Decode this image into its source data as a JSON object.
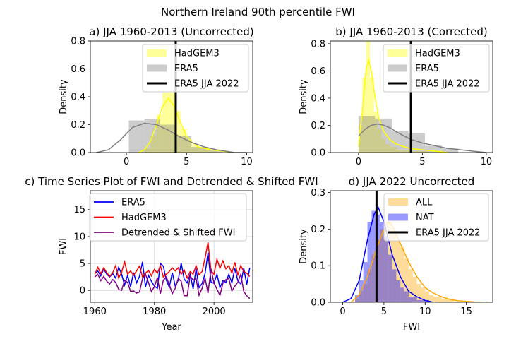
{
  "figure": {
    "suptitle": "Northern Ireland 90th percentile FWI"
  },
  "colors": {
    "hadgem_fill": "#ffff00",
    "hadgem_line": "#ffff00",
    "era5_fill": "#808080",
    "era5_line": "#808080",
    "obs_line": "#000000",
    "ts_era5": "#0000ff",
    "ts_hadgem": "#ff0000",
    "ts_detrended": "#800080",
    "all_fill": "#ffa500",
    "all_line": "#ffa500",
    "nat_fill": "#0000ff",
    "nat_line": "#0000ff",
    "grid": "#b0b0b0"
  },
  "chart_data": [
    {
      "id": "a",
      "type": "bar",
      "title": "a) JJA 1960-2013 (Uncorrected)",
      "xlabel": "",
      "ylabel": "Density",
      "xlim": [
        -3,
        10.5
      ],
      "ylim": [
        0,
        0.8
      ],
      "xticks": [
        0,
        5,
        10
      ],
      "yticks": [
        0.0,
        0.2,
        0.4,
        0.6,
        0.8
      ],
      "legend_position": "upper right",
      "legend": [
        "HadGEM3",
        "ERA5",
        "ERA5 JJA 2022"
      ],
      "hist_series": [
        {
          "name": "HadGEM3",
          "bins": [
            [
              1.5,
              2.0,
              0.03
            ],
            [
              2.0,
              2.5,
              0.12
            ],
            [
              2.5,
              3.0,
              0.27
            ],
            [
              3.0,
              3.5,
              0.43
            ],
            [
              3.5,
              4.0,
              0.43
            ],
            [
              4.0,
              4.5,
              0.3
            ],
            [
              4.5,
              5.0,
              0.17
            ],
            [
              5.0,
              5.5,
              0.09
            ],
            [
              5.5,
              6.0,
              0.05
            ],
            [
              6.0,
              6.5,
              0.03
            ],
            [
              6.5,
              7.0,
              0.02
            ],
            [
              7.0,
              7.5,
              0.01
            ]
          ],
          "kde": [
            [
              1.0,
              0.0
            ],
            [
              1.5,
              0.02
            ],
            [
              2.0,
              0.08
            ],
            [
              2.5,
              0.2
            ],
            [
              3.0,
              0.33
            ],
            [
              3.5,
              0.39
            ],
            [
              4.0,
              0.33
            ],
            [
              4.5,
              0.21
            ],
            [
              5.0,
              0.12
            ],
            [
              5.5,
              0.07
            ],
            [
              6.0,
              0.04
            ],
            [
              7.0,
              0.02
            ],
            [
              8.0,
              0.01
            ],
            [
              9.0,
              0.0
            ]
          ]
        },
        {
          "name": "ERA5",
          "bins": [
            [
              0.2,
              1.5,
              0.23
            ],
            [
              1.5,
              2.8,
              0.24
            ],
            [
              2.8,
              4.1,
              0.2
            ],
            [
              4.1,
              5.4,
              0.12
            ],
            [
              5.4,
              6.7,
              0.04
            ],
            [
              6.7,
              8.0,
              0.02
            ]
          ],
          "kde": [
            [
              -2.5,
              0.0
            ],
            [
              -1.5,
              0.02
            ],
            [
              -0.5,
              0.09
            ],
            [
              0.5,
              0.18
            ],
            [
              1.5,
              0.21
            ],
            [
              2.5,
              0.2
            ],
            [
              3.5,
              0.16
            ],
            [
              4.5,
              0.11
            ],
            [
              5.5,
              0.07
            ],
            [
              6.5,
              0.04
            ],
            [
              7.5,
              0.02
            ],
            [
              9.0,
              0.0
            ],
            [
              10.0,
              0.0
            ]
          ]
        }
      ],
      "vline": {
        "name": "ERA5 JJA 2022",
        "x": 4.1
      }
    },
    {
      "id": "b",
      "type": "bar",
      "title": "b) JJA 1960-2013 (Corrected)",
      "xlabel": "",
      "ylabel": "Density",
      "xlim": [
        -2.2,
        10.5
      ],
      "ylim": [
        0,
        0.82
      ],
      "xticks": [
        0,
        5,
        10
      ],
      "yticks": [
        0.0,
        0.2,
        0.4,
        0.6,
        0.8
      ],
      "legend_position": "upper right",
      "legend": [
        "HadGEM3",
        "ERA5",
        "ERA5 JJA 2022"
      ],
      "hist_series": [
        {
          "name": "HadGEM3",
          "bins": [
            [
              0.0,
              0.3,
              0.2
            ],
            [
              0.3,
              0.6,
              0.55
            ],
            [
              0.6,
              0.9,
              0.82
            ],
            [
              0.9,
              1.2,
              0.55
            ],
            [
              1.2,
              1.5,
              0.3
            ],
            [
              1.5,
              1.8,
              0.17
            ],
            [
              1.8,
              2.1,
              0.1
            ],
            [
              2.1,
              2.5,
              0.06
            ],
            [
              2.5,
              3.0,
              0.04
            ],
            [
              3.0,
              4.0,
              0.02
            ],
            [
              4.0,
              5.5,
              0.01
            ]
          ],
          "kde": [
            [
              0.0,
              0.05
            ],
            [
              0.3,
              0.3
            ],
            [
              0.6,
              0.62
            ],
            [
              0.8,
              0.68
            ],
            [
              1.0,
              0.6
            ],
            [
              1.3,
              0.4
            ],
            [
              1.6,
              0.25
            ],
            [
              2.0,
              0.15
            ],
            [
              2.5,
              0.09
            ],
            [
              3.0,
              0.06
            ],
            [
              4.0,
              0.03
            ],
            [
              5.0,
              0.02
            ],
            [
              6.0,
              0.01
            ],
            [
              7.0,
              0.0
            ]
          ]
        },
        {
          "name": "ERA5",
          "bins": [
            [
              0.0,
              1.3,
              0.27
            ],
            [
              1.3,
              2.6,
              0.25
            ],
            [
              2.6,
              3.9,
              0.16
            ],
            [
              3.9,
              5.2,
              0.14
            ],
            [
              5.2,
              6.5,
              0.05
            ],
            [
              6.5,
              7.8,
              0.03
            ]
          ],
          "kde": [
            [
              0.0,
              0.12
            ],
            [
              0.5,
              0.17
            ],
            [
              1.0,
              0.2
            ],
            [
              1.5,
              0.21
            ],
            [
              2.0,
              0.2
            ],
            [
              2.5,
              0.18
            ],
            [
              3.0,
              0.15
            ],
            [
              4.0,
              0.1
            ],
            [
              5.0,
              0.07
            ],
            [
              6.0,
              0.05
            ],
            [
              7.0,
              0.03
            ],
            [
              8.0,
              0.02
            ],
            [
              9.0,
              0.01
            ],
            [
              10.0,
              0.0
            ]
          ]
        }
      ],
      "vline": {
        "name": "ERA5 JJA 2022",
        "x": 4.1
      }
    },
    {
      "id": "c",
      "type": "line",
      "title": "c) Time Series Plot of FWI and Detrended & Shifted FWI",
      "xlabel": "Year",
      "ylabel": "FWI",
      "xlim": [
        1958.5,
        2013
      ],
      "ylim": [
        -2.2,
        18.5
      ],
      "xticks": [
        1960,
        1980,
        2000
      ],
      "yticks": [
        0,
        5,
        10,
        15
      ],
      "grid": true,
      "legend_position": "upper left",
      "x": [
        1960,
        1961,
        1962,
        1963,
        1964,
        1965,
        1966,
        1967,
        1968,
        1969,
        1970,
        1971,
        1972,
        1973,
        1974,
        1975,
        1976,
        1977,
        1978,
        1979,
        1980,
        1981,
        1982,
        1983,
        1984,
        1985,
        1986,
        1987,
        1988,
        1989,
        1990,
        1991,
        1992,
        1993,
        1994,
        1995,
        1996,
        1997,
        1998,
        1999,
        2000,
        2001,
        2002,
        2003,
        2004,
        2005,
        2006,
        2007,
        2008,
        2009,
        2010,
        2011,
        2012
      ],
      "series": [
        {
          "name": "ERA5",
          "values": [
            3.2,
            3.6,
            2.7,
            4.0,
            3.0,
            2.5,
            3.1,
            2.3,
            4.3,
            3.0,
            1.0,
            2.8,
            0.7,
            3.3,
            1.4,
            2.6,
            5.3,
            0.6,
            2.8,
            1.7,
            0.8,
            0.4,
            5.0,
            4.5,
            1.9,
            0.6,
            3.3,
            0.8,
            1.9,
            5.1,
            2.1,
            1.4,
            3.0,
            0.3,
            4.0,
            0.5,
            1.3,
            3.1,
            7.0,
            1.6,
            1.3,
            3.0,
            0.5,
            1.8,
            1.5,
            3.0,
            1.4,
            4.1,
            1.8,
            1.2,
            4.1,
            1.1,
            4.2
          ]
        },
        {
          "name": "HadGEM3",
          "values": [
            3.0,
            4.3,
            3.1,
            4.2,
            3.3,
            2.6,
            3.3,
            4.6,
            2.3,
            3.4,
            5.3,
            3.0,
            3.6,
            2.8,
            3.6,
            4.5,
            2.5,
            3.2,
            3.7,
            2.7,
            3.9,
            3.2,
            4.6,
            2.5,
            3.0,
            3.5,
            4.2,
            3.6,
            4.2,
            3.0,
            3.8,
            2.3,
            3.5,
            3.0,
            4.6,
            2.9,
            3.5,
            6.0,
            8.9,
            3.7,
            3.0,
            5.8,
            4.1,
            5.5,
            4.0,
            4.6,
            3.2,
            5.2,
            2.9,
            4.6,
            3.5,
            3.2,
            2.6
          ]
        },
        {
          "name": "Detrended & Shifted FWI",
          "values": [
            2.5,
            3.0,
            1.8,
            2.6,
            1.7,
            1.2,
            2.0,
            1.5,
            0.2,
            0.0,
            1.9,
            1.5,
            -0.2,
            -0.1,
            -0.5,
            -0.3,
            2.2,
            3.0,
            1.5,
            -0.2,
            0.7,
            2.4,
            -0.6,
            1.9,
            2.5,
            1.1,
            -0.6,
            0.4,
            2.2,
            1.7,
            -1.0,
            -1.0,
            2.7,
            1.9,
            2.2,
            -0.9,
            0.4,
            2.3,
            -0.5,
            4.0,
            1.4,
            0.2,
            -0.9,
            1.3,
            2.0,
            2.2,
            -0.1,
            0.8,
            1.5,
            3.0,
            -0.2,
            -1.0,
            -1.5
          ]
        }
      ]
    },
    {
      "id": "d",
      "type": "bar",
      "title": "d) JJA 2022 Uncorrected",
      "xlabel": "FWI",
      "ylabel": "Density",
      "xlim": [
        -1.5,
        18.2
      ],
      "ylim": [
        0,
        0.305
      ],
      "xticks": [
        0,
        5,
        10,
        15
      ],
      "yticks": [
        0.0,
        0.1,
        0.2,
        0.3
      ],
      "legend_position": "upper right",
      "legend": [
        "ALL",
        "NAT",
        "ERA5 JJA 2022"
      ],
      "hist_series": [
        {
          "name": "ALL",
          "bins": [
            [
              1.5,
              2.0,
              0.01
            ],
            [
              2.0,
              2.5,
              0.03
            ],
            [
              2.5,
              3.0,
              0.05
            ],
            [
              3.0,
              3.5,
              0.09
            ],
            [
              3.5,
              4.0,
              0.13
            ],
            [
              4.0,
              4.5,
              0.17
            ],
            [
              4.5,
              5.0,
              0.2
            ],
            [
              5.0,
              5.5,
              0.22
            ],
            [
              5.5,
              6.0,
              0.22
            ],
            [
              6.0,
              6.5,
              0.2
            ],
            [
              6.5,
              7.0,
              0.17
            ],
            [
              7.0,
              7.5,
              0.15
            ],
            [
              7.5,
              8.0,
              0.12
            ],
            [
              8.0,
              8.5,
              0.09
            ],
            [
              8.5,
              9.0,
              0.07
            ],
            [
              9.0,
              9.5,
              0.05
            ],
            [
              9.5,
              10.0,
              0.04
            ],
            [
              10.0,
              10.5,
              0.03
            ],
            [
              10.5,
              11.0,
              0.02
            ],
            [
              11.0,
              12.0,
              0.015
            ],
            [
              12.0,
              13.5,
              0.008
            ]
          ],
          "kde": [
            [
              1.0,
              0.0
            ],
            [
              2.0,
              0.02
            ],
            [
              3.0,
              0.07
            ],
            [
              4.0,
              0.14
            ],
            [
              5.0,
              0.2
            ],
            [
              5.5,
              0.22
            ],
            [
              6.0,
              0.21
            ],
            [
              7.0,
              0.16
            ],
            [
              8.0,
              0.11
            ],
            [
              9.0,
              0.07
            ],
            [
              10.0,
              0.04
            ],
            [
              11.0,
              0.025
            ],
            [
              12.0,
              0.015
            ],
            [
              13.0,
              0.008
            ],
            [
              14.0,
              0.004
            ],
            [
              16.0,
              0.001
            ],
            [
              17.5,
              0.0
            ]
          ]
        },
        {
          "name": "NAT",
          "bins": [
            [
              1.5,
              2.0,
              0.02
            ],
            [
              2.0,
              2.5,
              0.06
            ],
            [
              2.5,
              3.0,
              0.11
            ],
            [
              3.0,
              3.5,
              0.22
            ],
            [
              3.5,
              4.0,
              0.25
            ],
            [
              4.0,
              4.5,
              0.24
            ],
            [
              4.5,
              5.0,
              0.22
            ],
            [
              5.0,
              5.5,
              0.18
            ],
            [
              5.5,
              6.0,
              0.13
            ],
            [
              6.0,
              6.5,
              0.09
            ],
            [
              6.5,
              7.0,
              0.06
            ],
            [
              7.0,
              7.5,
              0.04
            ],
            [
              7.5,
              8.0,
              0.03
            ],
            [
              8.0,
              9.0,
              0.015
            ],
            [
              9.0,
              10.5,
              0.006
            ]
          ],
          "kde": [
            [
              0.0,
              0.0
            ],
            [
              1.0,
              0.01
            ],
            [
              2.0,
              0.06
            ],
            [
              3.0,
              0.17
            ],
            [
              3.8,
              0.24
            ],
            [
              4.3,
              0.26
            ],
            [
              5.0,
              0.22
            ],
            [
              6.0,
              0.13
            ],
            [
              7.0,
              0.07
            ],
            [
              8.0,
              0.03
            ],
            [
              9.0,
              0.015
            ],
            [
              10.0,
              0.005
            ],
            [
              11.0,
              0.0
            ]
          ]
        }
      ],
      "vline": {
        "name": "ERA5 JJA 2022",
        "x": 4.1
      }
    }
  ]
}
